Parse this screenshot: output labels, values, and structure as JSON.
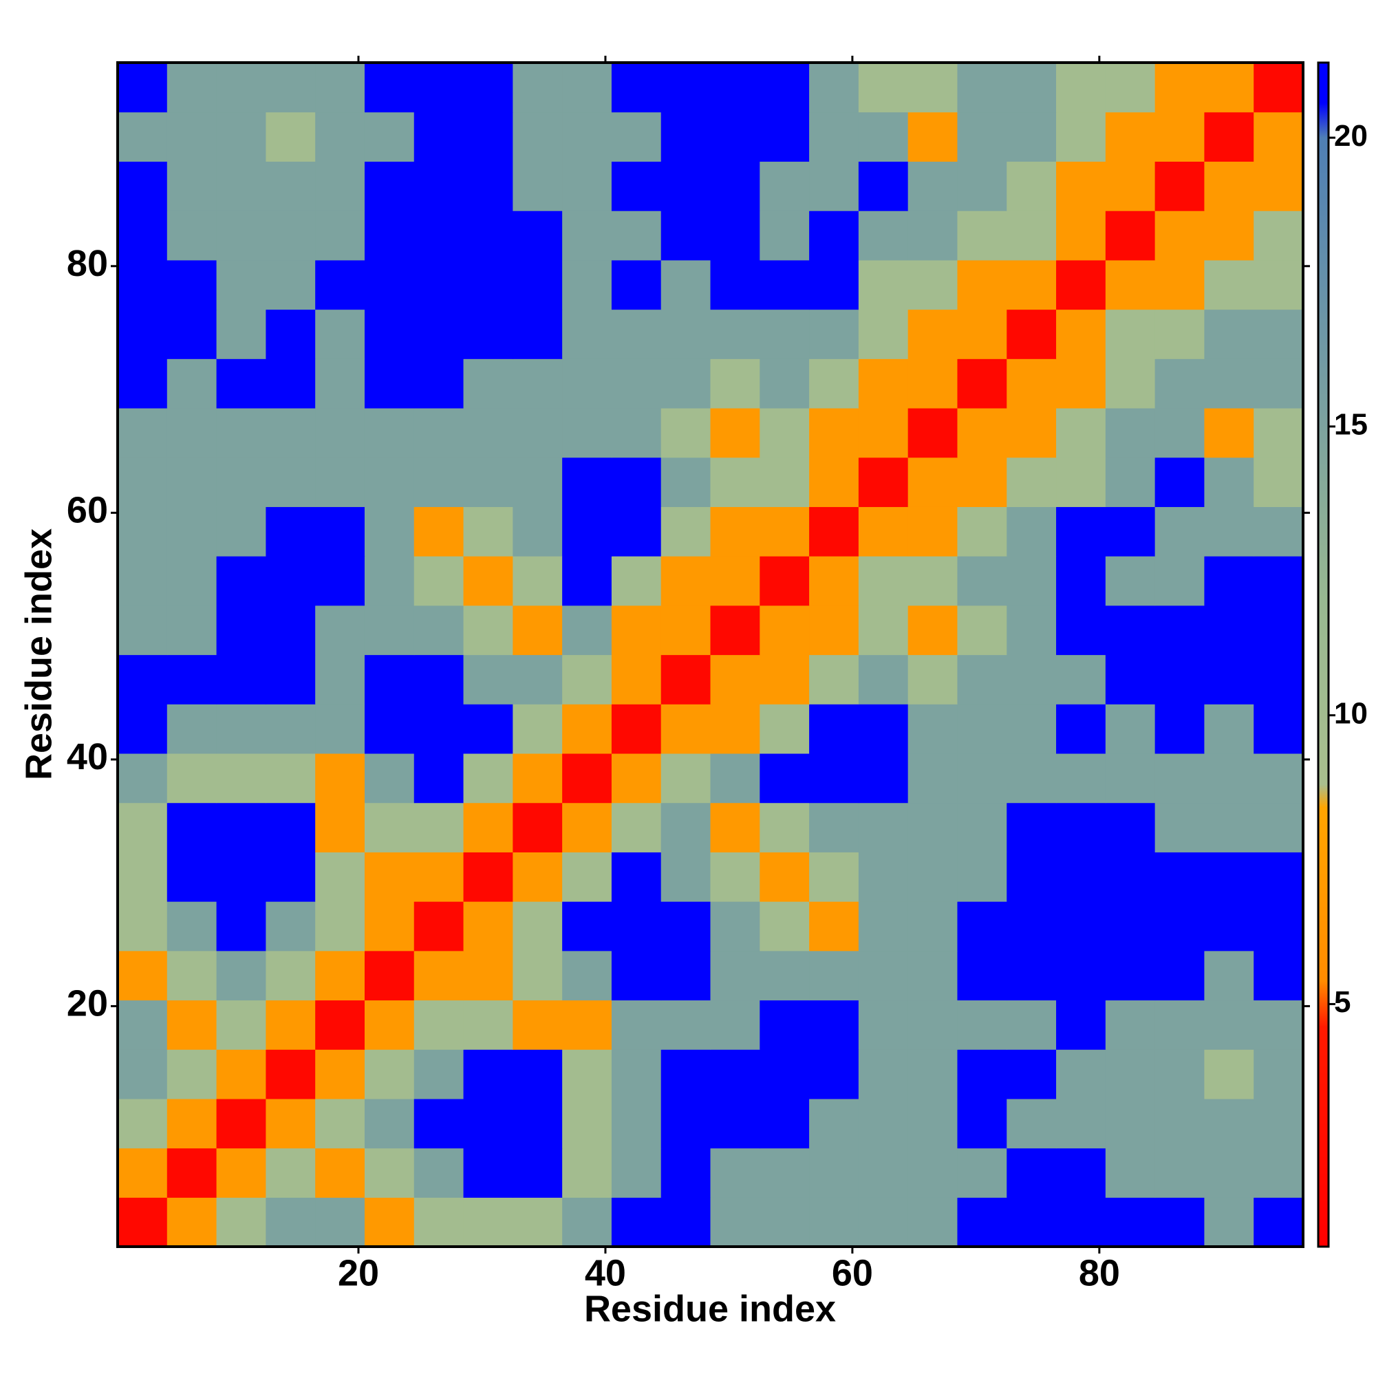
{
  "chart_data": {
    "type": "heatmap",
    "xlabel": "Residue index",
    "ylabel": "Residue index",
    "x": [
      2.5,
      6.5,
      10.5,
      14.5,
      18.5,
      22.5,
      26.5,
      30.5,
      34.5,
      38.5,
      42.5,
      46.5,
      50.5,
      54.5,
      58.5,
      62.5,
      66.5,
      70.5,
      74.5,
      78.5,
      82.5,
      86.5,
      90.5,
      94.5
    ],
    "y": [
      2.5,
      6.5,
      10.5,
      14.5,
      18.5,
      22.5,
      26.5,
      30.5,
      34.5,
      38.5,
      42.5,
      46.5,
      50.5,
      54.5,
      58.5,
      62.5,
      66.5,
      70.5,
      74.5,
      78.5,
      82.5,
      86.5,
      90.5,
      94.5
    ],
    "xlim": [
      0.5,
      96.5
    ],
    "ylim": [
      0.5,
      96.5
    ],
    "xticks": [
      20,
      40,
      60,
      80
    ],
    "yticks": [
      20,
      40,
      60,
      80
    ],
    "zlim": [
      0.8,
      21.3
    ],
    "zticks": [
      5,
      10,
      15,
      20
    ],
    "colorscale": [
      [
        0.8,
        "#ff0000"
      ],
      [
        4.6,
        "#ff1a00"
      ],
      [
        5.4,
        "#ff8c00"
      ],
      [
        8.4,
        "#ffa500"
      ],
      [
        8.8,
        "#a9bf8e"
      ],
      [
        12,
        "#98b891"
      ],
      [
        20,
        "#4f7fb5"
      ],
      [
        20.6,
        "#0000ff"
      ],
      [
        21.3,
        "#0000ff"
      ]
    ],
    "z": [
      [
        2,
        7,
        10,
        15,
        15,
        7,
        10,
        10,
        10,
        15,
        21,
        21,
        15,
        15,
        15,
        15,
        15,
        21,
        21,
        21,
        21,
        21,
        15,
        21
      ],
      [
        7,
        2,
        7,
        10,
        7,
        10,
        15,
        21,
        21,
        10,
        15,
        21,
        15,
        15,
        15,
        15,
        15,
        15,
        21,
        21,
        15,
        15,
        15,
        15
      ],
      [
        10,
        7,
        2,
        7,
        10,
        15,
        21,
        21,
        21,
        10,
        15,
        21,
        21,
        21,
        15,
        15,
        15,
        21,
        15,
        15,
        15,
        15,
        15,
        15
      ],
      [
        15,
        10,
        7,
        2,
        7,
        10,
        15,
        21,
        21,
        10,
        15,
        21,
        21,
        21,
        21,
        15,
        15,
        21,
        21,
        15,
        15,
        15,
        10,
        15
      ],
      [
        15,
        7,
        10,
        7,
        2,
        7,
        10,
        10,
        7,
        7,
        15,
        15,
        15,
        21,
        21,
        15,
        15,
        15,
        15,
        21,
        15,
        15,
        15,
        15
      ],
      [
        7,
        10,
        15,
        10,
        7,
        2,
        7,
        7,
        10,
        15,
        21,
        21,
        15,
        15,
        15,
        15,
        15,
        21,
        21,
        21,
        21,
        21,
        15,
        21
      ],
      [
        10,
        15,
        21,
        15,
        10,
        7,
        2,
        7,
        10,
        21,
        21,
        21,
        15,
        10,
        7,
        15,
        15,
        21,
        21,
        21,
        21,
        21,
        21,
        21
      ],
      [
        10,
        21,
        21,
        21,
        10,
        7,
        7,
        2,
        7,
        10,
        21,
        15,
        10,
        7,
        10,
        15,
        15,
        15,
        21,
        21,
        21,
        21,
        21,
        21
      ],
      [
        10,
        21,
        21,
        21,
        7,
        10,
        10,
        7,
        2,
        7,
        10,
        15,
        7,
        10,
        15,
        15,
        15,
        15,
        21,
        21,
        21,
        15,
        15,
        15
      ],
      [
        15,
        10,
        10,
        10,
        7,
        15,
        21,
        10,
        7,
        2,
        7,
        10,
        15,
        21,
        21,
        21,
        15,
        15,
        15,
        15,
        15,
        15,
        15,
        15
      ],
      [
        21,
        15,
        15,
        15,
        15,
        21,
        21,
        21,
        10,
        7,
        2,
        7,
        7,
        10,
        21,
        21,
        15,
        15,
        15,
        21,
        15,
        21,
        15,
        21
      ],
      [
        21,
        21,
        21,
        21,
        15,
        21,
        21,
        15,
        15,
        10,
        7,
        2,
        7,
        7,
        10,
        15,
        10,
        15,
        15,
        15,
        21,
        21,
        21,
        21
      ],
      [
        15,
        15,
        21,
        21,
        15,
        15,
        15,
        10,
        7,
        15,
        7,
        7,
        2,
        7,
        7,
        10,
        7,
        10,
        15,
        21,
        21,
        21,
        21,
        21
      ],
      [
        15,
        15,
        21,
        21,
        21,
        15,
        10,
        7,
        10,
        21,
        10,
        7,
        7,
        2,
        7,
        10,
        10,
        15,
        15,
        21,
        15,
        15,
        21,
        21
      ],
      [
        15,
        15,
        15,
        21,
        21,
        15,
        7,
        10,
        15,
        21,
        21,
        10,
        7,
        7,
        2,
        7,
        7,
        10,
        15,
        21,
        21,
        15,
        15,
        15
      ],
      [
        15,
        15,
        15,
        15,
        15,
        15,
        15,
        15,
        15,
        21,
        21,
        15,
        10,
        10,
        7,
        2,
        7,
        7,
        10,
        10,
        15,
        21,
        15,
        10
      ],
      [
        15,
        15,
        15,
        15,
        15,
        15,
        15,
        15,
        15,
        15,
        15,
        10,
        7,
        10,
        7,
        7,
        2,
        7,
        7,
        10,
        15,
        15,
        7,
        10
      ],
      [
        21,
        15,
        21,
        21,
        15,
        21,
        21,
        15,
        15,
        15,
        15,
        15,
        10,
        15,
        10,
        7,
        7,
        2,
        7,
        7,
        10,
        15,
        15,
        15
      ],
      [
        21,
        21,
        15,
        21,
        15,
        21,
        21,
        21,
        21,
        15,
        15,
        15,
        15,
        15,
        15,
        10,
        7,
        7,
        2,
        7,
        10,
        10,
        15,
        15
      ],
      [
        21,
        21,
        15,
        15,
        21,
        21,
        21,
        21,
        21,
        15,
        21,
        15,
        21,
        21,
        21,
        10,
        10,
        7,
        7,
        2,
        7,
        7,
        10,
        10
      ],
      [
        21,
        15,
        15,
        15,
        15,
        21,
        21,
        21,
        21,
        15,
        15,
        21,
        21,
        15,
        21,
        15,
        15,
        10,
        10,
        7,
        2,
        7,
        7,
        10
      ],
      [
        21,
        15,
        15,
        15,
        15,
        21,
        21,
        21,
        15,
        15,
        21,
        21,
        21,
        15,
        15,
        21,
        15,
        15,
        10,
        7,
        7,
        2,
        7,
        7
      ],
      [
        15,
        15,
        15,
        10,
        15,
        15,
        21,
        21,
        15,
        15,
        15,
        21,
        21,
        21,
        15,
        15,
        7,
        15,
        15,
        10,
        7,
        7,
        2,
        7
      ],
      [
        21,
        15,
        15,
        15,
        15,
        21,
        21,
        21,
        15,
        15,
        21,
        21,
        21,
        21,
        15,
        10,
        10,
        15,
        15,
        10,
        10,
        7,
        7,
        2
      ]
    ]
  }
}
